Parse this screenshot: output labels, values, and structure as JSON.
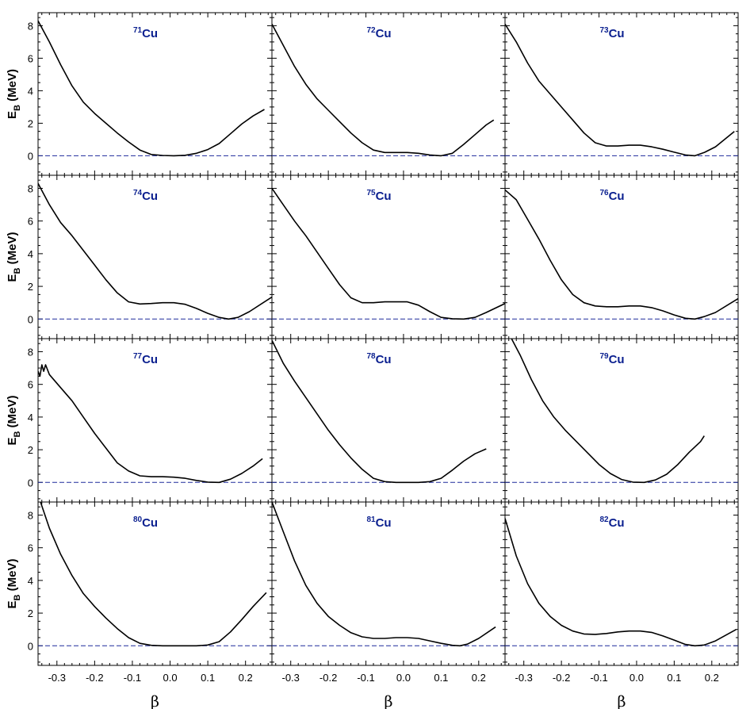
{
  "chart_data": {
    "type": "line",
    "layout": "4x3 grid of panels",
    "shared_xlabel": "β",
    "shared_ylabel": "E",
    "shared_ylabel_sub": "B",
    "shared_ylabel_unit": " (MeV)",
    "xlim": [
      -0.35,
      0.27
    ],
    "ylim": [
      -1.2,
      8.8
    ],
    "xticks": [
      -0.3,
      -0.2,
      -0.1,
      0.0,
      0.1,
      0.2
    ],
    "xtick_labels": [
      "-0.3",
      "-0.2",
      "-0.1",
      "0.0",
      "0.1",
      "0.2"
    ],
    "yticks": [
      0,
      2,
      4,
      6,
      8
    ],
    "ytick_labels": [
      "0",
      "2",
      "4",
      "6",
      "8"
    ],
    "curve_color": "#000000",
    "reference_line": {
      "y": 0,
      "style": "dashed",
      "color": "#1e2a9c"
    },
    "title_color": "#0a1f8f",
    "panels": [
      {
        "mass": "71",
        "element": "Cu",
        "x": [
          -0.35,
          -0.32,
          -0.29,
          -0.26,
          -0.23,
          -0.2,
          -0.17,
          -0.14,
          -0.11,
          -0.08,
          -0.05,
          -0.02,
          0.01,
          0.04,
          0.07,
          0.1,
          0.13,
          0.16,
          0.19,
          0.22,
          0.25
        ],
        "y": [
          8.3,
          7.0,
          5.6,
          4.3,
          3.3,
          2.6,
          2.0,
          1.4,
          0.85,
          0.35,
          0.08,
          0.02,
          0.0,
          0.03,
          0.15,
          0.38,
          0.75,
          1.35,
          1.95,
          2.45,
          2.85
        ]
      },
      {
        "mass": "72",
        "element": "Cu",
        "x": [
          -0.35,
          -0.32,
          -0.29,
          -0.26,
          -0.23,
          -0.2,
          -0.17,
          -0.14,
          -0.11,
          -0.08,
          -0.05,
          -0.02,
          0.01,
          0.04,
          0.07,
          0.1,
          0.13,
          0.16,
          0.19,
          0.22,
          0.24
        ],
        "y": [
          8.1,
          6.8,
          5.5,
          4.4,
          3.5,
          2.8,
          2.1,
          1.4,
          0.8,
          0.35,
          0.2,
          0.2,
          0.2,
          0.15,
          0.05,
          0.0,
          0.15,
          0.7,
          1.3,
          1.9,
          2.2
        ]
      },
      {
        "mass": "73",
        "element": "Cu",
        "x": [
          -0.35,
          -0.32,
          -0.29,
          -0.26,
          -0.23,
          -0.2,
          -0.17,
          -0.14,
          -0.11,
          -0.08,
          -0.05,
          -0.02,
          0.01,
          0.04,
          0.07,
          0.1,
          0.13,
          0.155,
          0.18,
          0.21,
          0.26
        ],
        "y": [
          8.1,
          7.0,
          5.7,
          4.6,
          3.8,
          3.0,
          2.2,
          1.4,
          0.8,
          0.6,
          0.6,
          0.65,
          0.65,
          0.55,
          0.4,
          0.22,
          0.05,
          0.0,
          0.2,
          0.55,
          1.5
        ]
      },
      {
        "mass": "74",
        "element": "Cu",
        "x": [
          -0.35,
          -0.32,
          -0.29,
          -0.26,
          -0.23,
          -0.2,
          -0.17,
          -0.14,
          -0.11,
          -0.08,
          -0.05,
          -0.02,
          0.01,
          0.04,
          0.07,
          0.1,
          0.13,
          0.155,
          0.18,
          0.21,
          0.27
        ],
        "y": [
          8.3,
          7.0,
          5.9,
          5.1,
          4.2,
          3.3,
          2.4,
          1.6,
          1.05,
          0.92,
          0.95,
          1.0,
          1.0,
          0.9,
          0.65,
          0.35,
          0.1,
          0.0,
          0.1,
          0.45,
          1.35
        ]
      },
      {
        "mass": "75",
        "element": "Cu",
        "x": [
          -0.35,
          -0.32,
          -0.29,
          -0.26,
          -0.23,
          -0.2,
          -0.17,
          -0.14,
          -0.11,
          -0.08,
          -0.05,
          -0.02,
          0.01,
          0.04,
          0.07,
          0.1,
          0.13,
          0.16,
          0.19,
          0.22,
          0.27
        ],
        "y": [
          8.0,
          7.0,
          6.0,
          5.1,
          4.1,
          3.1,
          2.1,
          1.3,
          1.0,
          1.0,
          1.05,
          1.05,
          1.05,
          0.85,
          0.45,
          0.1,
          0.02,
          0.0,
          0.1,
          0.4,
          0.95
        ]
      },
      {
        "mass": "76",
        "element": "Cu",
        "x": [
          -0.35,
          -0.32,
          -0.29,
          -0.26,
          -0.23,
          -0.2,
          -0.17,
          -0.14,
          -0.11,
          -0.08,
          -0.05,
          -0.02,
          0.01,
          0.04,
          0.07,
          0.1,
          0.13,
          0.155,
          0.18,
          0.21,
          0.27
        ],
        "y": [
          7.9,
          7.3,
          6.1,
          4.9,
          3.6,
          2.4,
          1.5,
          1.0,
          0.8,
          0.75,
          0.75,
          0.8,
          0.8,
          0.7,
          0.5,
          0.25,
          0.05,
          0.0,
          0.15,
          0.4,
          1.25
        ]
      },
      {
        "mass": "77",
        "element": "Cu",
        "x": [
          -0.35,
          -0.345,
          -0.34,
          -0.335,
          -0.33,
          -0.32,
          -0.29,
          -0.26,
          -0.23,
          -0.2,
          -0.17,
          -0.14,
          -0.11,
          -0.08,
          -0.05,
          -0.02,
          0.01,
          0.04,
          0.07,
          0.1,
          0.13,
          0.16,
          0.19,
          0.22,
          0.245
        ],
        "y": [
          6.8,
          6.5,
          7.2,
          6.8,
          7.2,
          6.6,
          5.8,
          5.0,
          4.0,
          3.0,
          2.1,
          1.2,
          0.7,
          0.4,
          0.35,
          0.35,
          0.32,
          0.25,
          0.12,
          0.02,
          0.0,
          0.2,
          0.55,
          1.0,
          1.45
        ]
      },
      {
        "mass": "78",
        "element": "Cu",
        "x": [
          -0.35,
          -0.32,
          -0.29,
          -0.26,
          -0.23,
          -0.2,
          -0.17,
          -0.14,
          -0.11,
          -0.08,
          -0.05,
          -0.02,
          0.01,
          0.04,
          0.07,
          0.1,
          0.13,
          0.16,
          0.19,
          0.22
        ],
        "y": [
          8.7,
          7.3,
          6.2,
          5.2,
          4.2,
          3.2,
          2.3,
          1.5,
          0.8,
          0.25,
          0.05,
          0.0,
          0.0,
          0.0,
          0.05,
          0.25,
          0.75,
          1.3,
          1.75,
          2.05
        ]
      },
      {
        "mass": "79",
        "element": "Cu",
        "x": [
          -0.335,
          -0.31,
          -0.28,
          -0.25,
          -0.22,
          -0.19,
          -0.16,
          -0.13,
          -0.1,
          -0.07,
          -0.04,
          -0.01,
          0.02,
          0.05,
          0.08,
          0.11,
          0.14,
          0.17,
          0.18
        ],
        "y": [
          8.9,
          7.8,
          6.3,
          5.0,
          4.0,
          3.2,
          2.5,
          1.8,
          1.1,
          0.55,
          0.18,
          0.02,
          0.0,
          0.15,
          0.5,
          1.1,
          1.85,
          2.5,
          2.85
        ]
      },
      {
        "mass": "80",
        "element": "Cu",
        "x": [
          -0.345,
          -0.32,
          -0.29,
          -0.26,
          -0.23,
          -0.2,
          -0.17,
          -0.14,
          -0.11,
          -0.08,
          -0.05,
          -0.02,
          0.01,
          0.04,
          0.07,
          0.1,
          0.13,
          0.16,
          0.19,
          0.22,
          0.255
        ],
        "y": [
          8.9,
          7.2,
          5.6,
          4.3,
          3.2,
          2.4,
          1.7,
          1.05,
          0.5,
          0.15,
          0.03,
          0.0,
          0.0,
          0.0,
          0.0,
          0.05,
          0.25,
          0.85,
          1.6,
          2.4,
          3.25
        ]
      },
      {
        "mass": "81",
        "element": "Cu",
        "x": [
          -0.35,
          -0.32,
          -0.29,
          -0.26,
          -0.23,
          -0.2,
          -0.17,
          -0.14,
          -0.11,
          -0.08,
          -0.05,
          -0.02,
          0.01,
          0.04,
          0.07,
          0.1,
          0.13,
          0.15,
          0.17,
          0.2,
          0.245
        ],
        "y": [
          8.8,
          7.0,
          5.2,
          3.7,
          2.6,
          1.8,
          1.25,
          0.8,
          0.55,
          0.45,
          0.45,
          0.5,
          0.5,
          0.45,
          0.3,
          0.15,
          0.03,
          0.0,
          0.1,
          0.45,
          1.15
        ]
      },
      {
        "mass": "82",
        "element": "Cu",
        "x": [
          -0.35,
          -0.32,
          -0.29,
          -0.26,
          -0.23,
          -0.2,
          -0.17,
          -0.14,
          -0.11,
          -0.08,
          -0.05,
          -0.02,
          0.01,
          0.04,
          0.07,
          0.1,
          0.13,
          0.155,
          0.18,
          0.21,
          0.265
        ],
        "y": [
          7.8,
          5.5,
          3.8,
          2.6,
          1.8,
          1.25,
          0.9,
          0.72,
          0.7,
          0.75,
          0.85,
          0.9,
          0.9,
          0.82,
          0.6,
          0.35,
          0.08,
          0.0,
          0.05,
          0.3,
          1.0
        ]
      }
    ]
  }
}
